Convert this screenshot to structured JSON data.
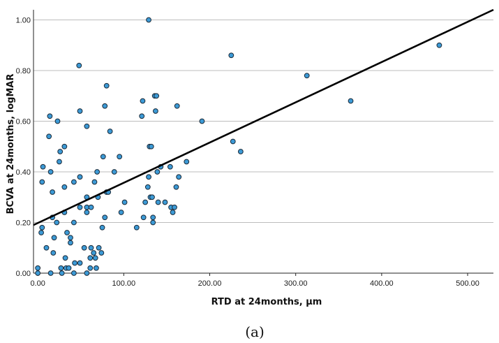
{
  "figure": {
    "caption": "(a)"
  },
  "chart_data": {
    "type": "scatter",
    "title": "",
    "xlabel": "RTD at 24months, μm",
    "ylabel": "BCVA at 24months, logMAR",
    "xlim": [
      -5,
      530
    ],
    "ylim": [
      0,
      1.04
    ],
    "xticks": [
      0,
      100,
      200,
      300,
      400,
      500
    ],
    "xtick_labels": [
      "0.00",
      "100.00",
      "200.00",
      "300.00",
      "400.00",
      "500.00"
    ],
    "yticks": [
      0,
      0.2,
      0.4,
      0.6,
      0.8,
      1.0
    ],
    "ytick_labels": [
      "0.00",
      "0.20",
      "0.40",
      "0.60",
      "0.80",
      "1.00"
    ],
    "grid": {
      "horizontal": true,
      "vertical": false
    },
    "colors": {
      "point_fill": "#3c9ad6",
      "point_edge": "#1b2a38",
      "fit_line": "#000000",
      "grid": "#bdbdbd"
    },
    "fit_line": {
      "x": [
        -5,
        530
      ],
      "y": [
        0.19,
        1.04
      ]
    },
    "points": [
      [
        0,
        0.02
      ],
      [
        0,
        0
      ],
      [
        5,
        0.18
      ],
      [
        4,
        0.16
      ],
      [
        5,
        0.36
      ],
      [
        6,
        0.42
      ],
      [
        10,
        0.1
      ],
      [
        14,
        0.62
      ],
      [
        13,
        0.54
      ],
      [
        15,
        0.4
      ],
      [
        15,
        0
      ],
      [
        17,
        0.32
      ],
      [
        18,
        0.08
      ],
      [
        17,
        0.22
      ],
      [
        19,
        0.14
      ],
      [
        22,
        0.2
      ],
      [
        23,
        0.6
      ],
      [
        26,
        0.48
      ],
      [
        27,
        0.02
      ],
      [
        25,
        0.44
      ],
      [
        28,
        0
      ],
      [
        31,
        0.5
      ],
      [
        31,
        0.34
      ],
      [
        31,
        0.24
      ],
      [
        33,
        0.02
      ],
      [
        32,
        0.06
      ],
      [
        34,
        0.16
      ],
      [
        36,
        0.02
      ],
      [
        38,
        0.12
      ],
      [
        38,
        0.14
      ],
      [
        42,
        0.36
      ],
      [
        42,
        0.2
      ],
      [
        43,
        0.04
      ],
      [
        42,
        0
      ],
      [
        48,
        0.82
      ],
      [
        49,
        0.64
      ],
      [
        49,
        0.38
      ],
      [
        49,
        0.26
      ],
      [
        49,
        0.04
      ],
      [
        54,
        0.1
      ],
      [
        57,
        0.58
      ],
      [
        57,
        0.3
      ],
      [
        57,
        0.26
      ],
      [
        57,
        0.24
      ],
      [
        57,
        0
      ],
      [
        61,
        0.06
      ],
      [
        61,
        0.02
      ],
      [
        62,
        0.26
      ],
      [
        62,
        0.1
      ],
      [
        65,
        0.08
      ],
      [
        66,
        0.36
      ],
      [
        67,
        0.06
      ],
      [
        68,
        0.02
      ],
      [
        69,
        0.4
      ],
      [
        70,
        0.3
      ],
      [
        71,
        0.1
      ],
      [
        74,
        0.08
      ],
      [
        76,
        0.46
      ],
      [
        75,
        0.18
      ],
      [
        78,
        0.66
      ],
      [
        78,
        0.22
      ],
      [
        80,
        0.74
      ],
      [
        80,
        0.32
      ],
      [
        82,
        0.32
      ],
      [
        84,
        0.56
      ],
      [
        89,
        0.4
      ],
      [
        95,
        0.46
      ],
      [
        97,
        0.24
      ],
      [
        101,
        0.28
      ],
      [
        115,
        0.18
      ],
      [
        121,
        0.62
      ],
      [
        122,
        0.68
      ],
      [
        123,
        0.22
      ],
      [
        125,
        0.28
      ],
      [
        128,
        0.34
      ],
      [
        129,
        1.0
      ],
      [
        129,
        0.38
      ],
      [
        130,
        0.5
      ],
      [
        131,
        0.3
      ],
      [
        132,
        0.5
      ],
      [
        133,
        0.3
      ],
      [
        134,
        0.22
      ],
      [
        134,
        0.2
      ],
      [
        136,
        0.7
      ],
      [
        137,
        0.64
      ],
      [
        138,
        0.7
      ],
      [
        139,
        0.4
      ],
      [
        140,
        0.28
      ],
      [
        143,
        0.42
      ],
      [
        148,
        0.28
      ],
      [
        154,
        0.42
      ],
      [
        155,
        0.26
      ],
      [
        157,
        0.24
      ],
      [
        159,
        0.26
      ],
      [
        161,
        0.34
      ],
      [
        162,
        0.66
      ],
      [
        164,
        0.38
      ],
      [
        173,
        0.44
      ],
      [
        191,
        0.6
      ],
      [
        225,
        0.86
      ],
      [
        227,
        0.52
      ],
      [
        236,
        0.48
      ],
      [
        313,
        0.78
      ],
      [
        364,
        0.68
      ],
      [
        467,
        0.9
      ]
    ]
  }
}
